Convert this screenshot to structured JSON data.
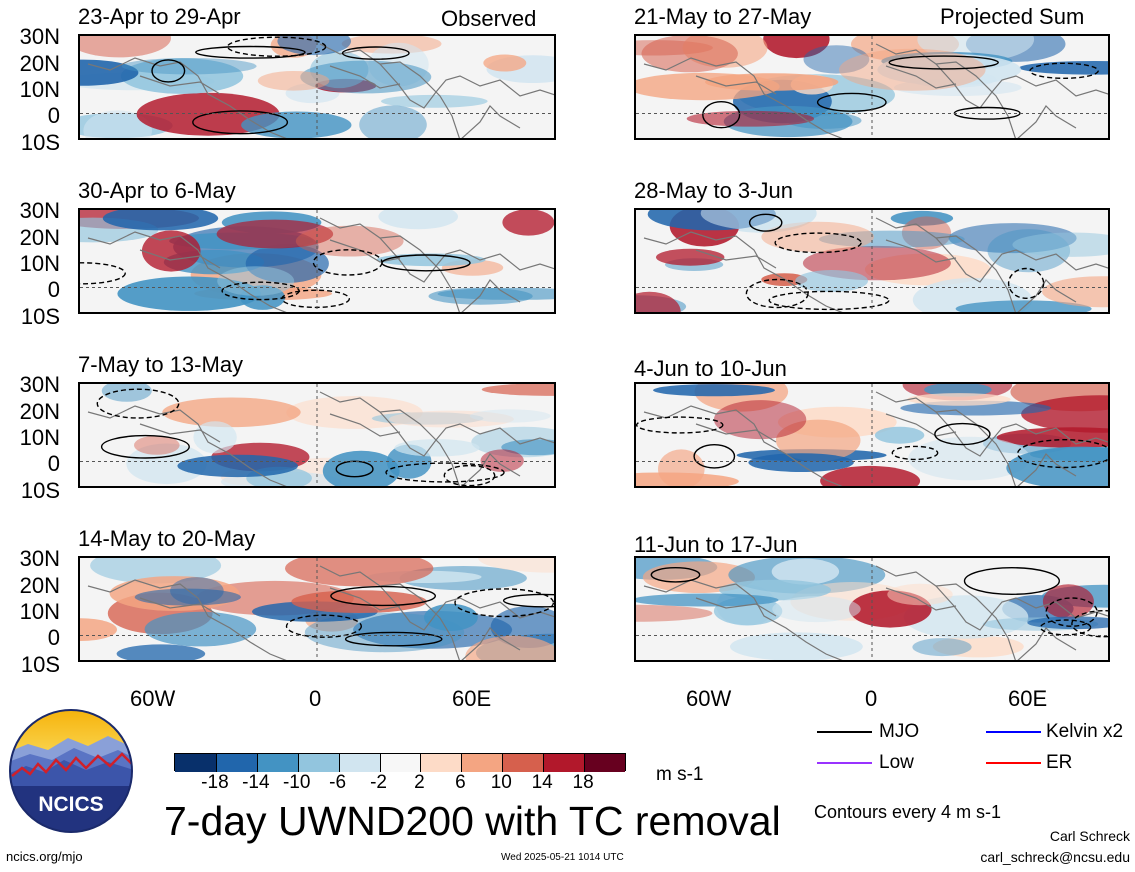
{
  "column_labels": {
    "left": "Observed",
    "right": "Projected Sum"
  },
  "panels_left": [
    {
      "title": "23-Apr to 29-Apr"
    },
    {
      "title": "30-Apr to 6-May"
    },
    {
      "title": "7-May to 13-May"
    },
    {
      "title": "14-May to 20-May"
    }
  ],
  "panels_right": [
    {
      "title": "21-May to 27-May"
    },
    {
      "title": "28-May to 3-Jun"
    },
    {
      "title": "4-Jun to 10-Jun"
    },
    {
      "title": "11-Jun to 17-Jun"
    }
  ],
  "lat_labels": [
    "30N",
    "20N",
    "10N",
    "0",
    "10S"
  ],
  "lon_labels": [
    "60W",
    "0",
    "60E"
  ],
  "colorbar": {
    "colors": [
      "#08306b",
      "#2166ac",
      "#4393c3",
      "#92c5de",
      "#d1e5f0",
      "#f7f7f7",
      "#fddbc7",
      "#f4a582",
      "#d6604d",
      "#b2182b",
      "#67001f"
    ],
    "ticks": [
      "-18",
      "-14",
      "-10",
      "-6",
      "-2",
      "2",
      "6",
      "10",
      "14",
      "18"
    ],
    "unit": "m s-1"
  },
  "legend": {
    "items": [
      {
        "label": "MJO",
        "color": "#000000"
      },
      {
        "label": "Kelvin x2",
        "color": "#0000ff"
      },
      {
        "label": "Low",
        "color": "#9933ff"
      },
      {
        "label": "ER",
        "color": "#ff0000"
      }
    ],
    "contour_note": "Contours every 4 m s-1"
  },
  "title": "7-day UWND200 with TC removal",
  "logo_text": "NCICS",
  "footer": {
    "url": "ncics.org/mjo",
    "timestamp": "Wed 2025-05-21 1014 UTC",
    "author": "Carl Schreck",
    "email": "carl_schreck@ncsu.edu"
  }
}
